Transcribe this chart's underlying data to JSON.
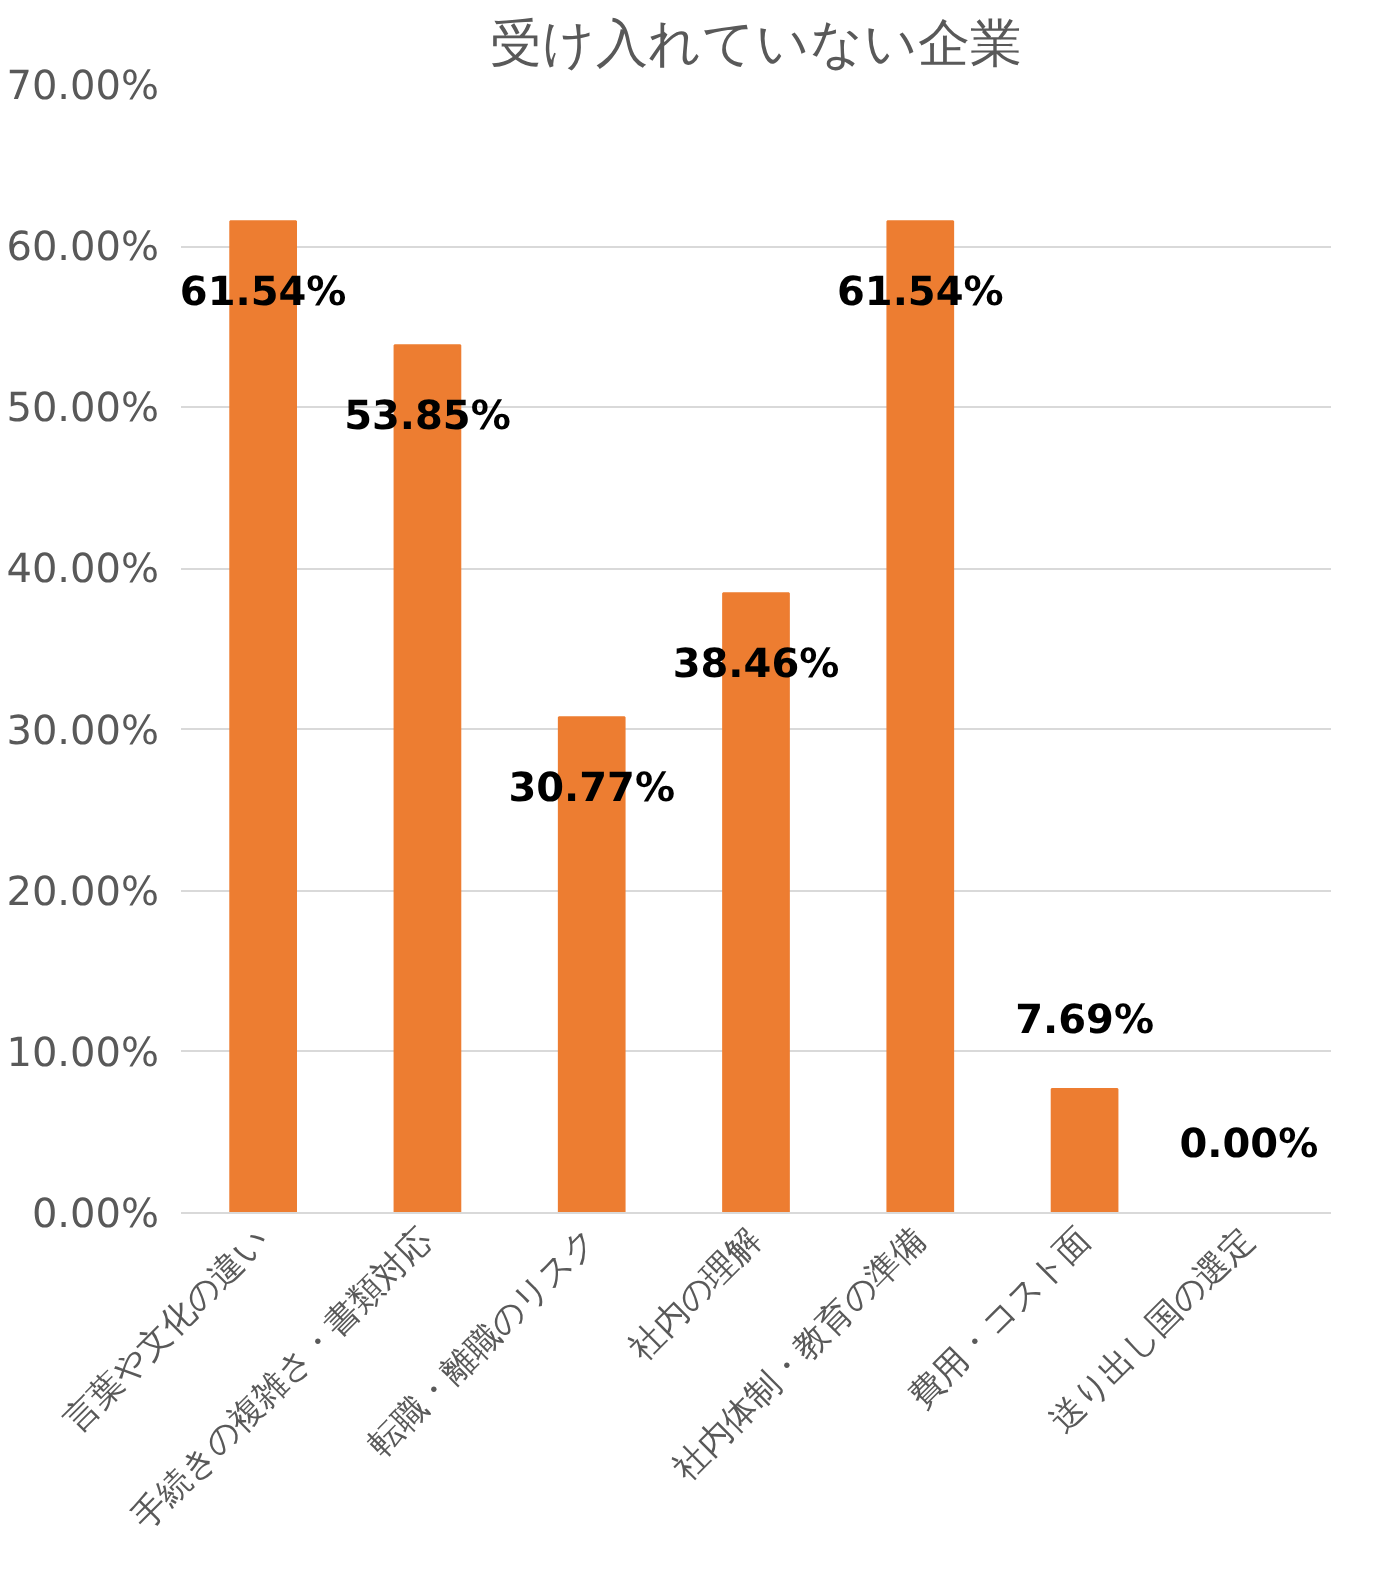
{
  "chart_data": {
    "type": "bar",
    "title": "受け入れていない企業",
    "categories": [
      "言葉や文化の違い",
      "手続きの複雑さ・書類対応",
      "転職・離職のリスク",
      "社内の理解",
      "社内体制・教育の準備",
      "費用・コスト面",
      "送り出し国の選定"
    ],
    "values": [
      61.54,
      53.85,
      30.77,
      38.46,
      61.54,
      7.69,
      0.0
    ],
    "value_labels": [
      "61.54%",
      "53.85%",
      "30.77%",
      "38.46%",
      "61.54%",
      "7.69%",
      "0.00%"
    ],
    "color": "#ed7d31",
    "ylim": [
      0,
      70
    ],
    "yticks": [
      {
        "value": 0,
        "label": "0.00%"
      },
      {
        "value": 10,
        "label": "10.00%"
      },
      {
        "value": 20,
        "label": "20.00%"
      },
      {
        "value": 30,
        "label": "30.00%"
      },
      {
        "value": 40,
        "label": "40.00%"
      },
      {
        "value": 50,
        "label": "50.00%"
      },
      {
        "value": 60,
        "label": "60.00%"
      },
      {
        "value": 70,
        "label": "70.00%"
      }
    ],
    "grid": "y"
  }
}
